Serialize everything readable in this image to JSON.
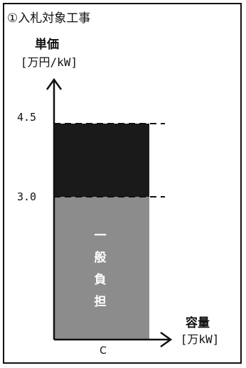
{
  "title": "①入札対象工事",
  "y_axis": {
    "label": "単価",
    "unit": "[万円/kW]"
  },
  "x_axis": {
    "label": "容量",
    "unit": "[万kW]"
  },
  "y_ticks": {
    "upper": "4.5",
    "lower": "3.0"
  },
  "x_tick": "C",
  "general_burden_chars": [
    "一",
    "般",
    "負",
    "担"
  ],
  "colors": {
    "upper_block": "#1a1a1a",
    "lower_block": "#8c8c8c",
    "frame": "#111111"
  },
  "chart_data": {
    "type": "bar",
    "categories": [
      "C"
    ],
    "series": [
      {
        "name": "一般負担",
        "values": [
          3.0
        ]
      },
      {
        "values": [
          1.5
        ]
      }
    ],
    "stacked": true,
    "ylim": [
      0,
      5.5
    ],
    "y_ticks": [
      3.0,
      4.5
    ],
    "xlabel": "容量 [万kW]",
    "ylabel": "単価 [万円/kW]",
    "dashed_reference_lines": [
      3.0,
      4.5
    ]
  }
}
